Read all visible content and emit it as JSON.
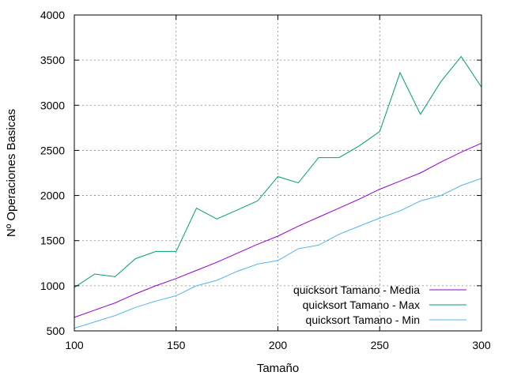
{
  "chart_data": {
    "type": "line",
    "title": "",
    "xlabel": "Tamaño",
    "ylabel": "Nº Operaciones Basicas",
    "xlim": [
      100,
      300
    ],
    "ylim": [
      500,
      4000
    ],
    "xticks": [
      100,
      150,
      200,
      250,
      300
    ],
    "yticks": [
      500,
      1000,
      1500,
      2000,
      2500,
      3000,
      3500,
      4000
    ],
    "grid": true,
    "legend_position": "bottom-right",
    "x": [
      100,
      110,
      120,
      130,
      140,
      150,
      160,
      170,
      180,
      190,
      200,
      210,
      220,
      230,
      240,
      250,
      260,
      270,
      280,
      290,
      300
    ],
    "series": [
      {
        "name": "quicksort Tamano - Media",
        "color": "#9400d3",
        "values": [
          650,
          730,
          810,
          910,
          1000,
          1080,
          1170,
          1260,
          1360,
          1460,
          1550,
          1660,
          1760,
          1860,
          1960,
          2070,
          2160,
          2250,
          2370,
          2480,
          2580
        ]
      },
      {
        "name": "quicksort Tamano - Max",
        "color": "#009e73",
        "values": [
          980,
          1130,
          1100,
          1300,
          1380,
          1380,
          1860,
          1740,
          1840,
          1940,
          2210,
          2140,
          2420,
          2420,
          2550,
          2710,
          3360,
          2900,
          3260,
          3540,
          3200
        ]
      },
      {
        "name": "quicksort Tamano - Min",
        "color": "#56b4e9",
        "values": [
          530,
          600,
          670,
          760,
          830,
          890,
          1000,
          1060,
          1160,
          1240,
          1280,
          1410,
          1450,
          1570,
          1660,
          1750,
          1830,
          1940,
          2000,
          2110,
          2190
        ]
      }
    ]
  }
}
